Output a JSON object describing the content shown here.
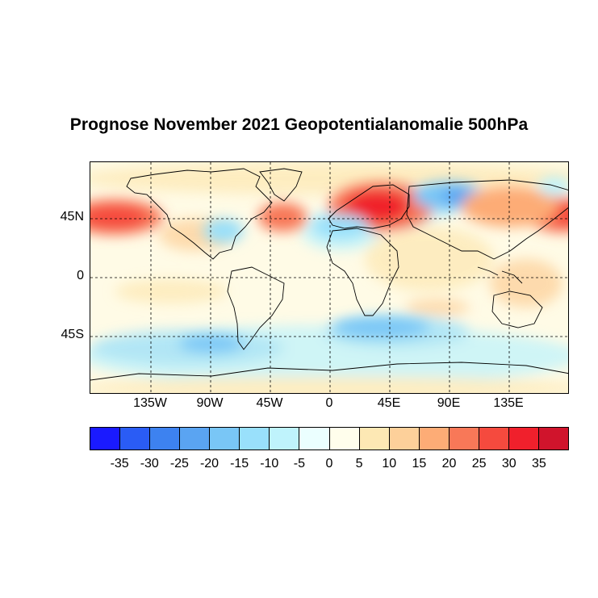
{
  "title": "Prognose November 2021 Geopotentialanomalie 500hPa",
  "map": {
    "lat_labels": [
      "45N",
      "0",
      "45S"
    ],
    "lon_labels": [
      "135W",
      "90W",
      "45W",
      "0",
      "45E",
      "90E",
      "135E"
    ],
    "gridlines": "dashed"
  },
  "colorbar": {
    "ticks": [
      "-35",
      "-30",
      "-25",
      "-20",
      "-15",
      "-10",
      "-5",
      "0",
      "5",
      "10",
      "15",
      "20",
      "25",
      "30",
      "35"
    ],
    "colors": [
      "#1a1aff",
      "#2a5cf5",
      "#3d82f0",
      "#5aa4f2",
      "#79c6f6",
      "#99e0fb",
      "#bff3fc",
      "#ebffff",
      "#fffeec",
      "#fde8b4",
      "#fdd09a",
      "#fdac76",
      "#f87858",
      "#f54a3e",
      "#f0202c",
      "#d0142c"
    ]
  }
}
